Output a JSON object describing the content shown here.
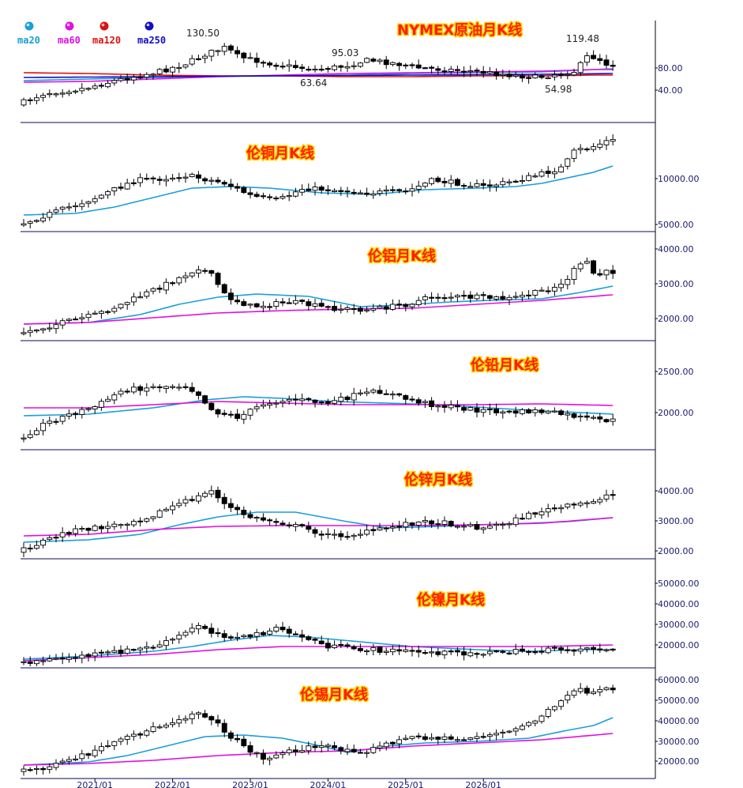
{
  "legend": [
    {
      "label": "ma20",
      "color": "#1a9ed8"
    },
    {
      "label": "ma60",
      "color": "#e010e0"
    },
    {
      "label": "ma120",
      "color": "#e01010"
    },
    {
      "label": "ma250",
      "color": "#1010c0"
    }
  ],
  "x_axis_dates": [
    "2021/01",
    "2022/01",
    "2023/01",
    "2024/01",
    "2025/01",
    "2026/01"
  ],
  "chart_data": [
    {
      "type": "candlestick",
      "title": "NYMEX原油月K线",
      "y_ticks": [
        "80.00",
        "40.00"
      ],
      "annotations": [
        "130.50",
        "95.03",
        "63.64",
        "119.48",
        "54.98"
      ],
      "ma_series": [
        "ma20",
        "ma60",
        "ma120",
        "ma250"
      ],
      "series_colors": {
        "ma20": "#1a9ed8",
        "ma60": "#e010e0",
        "ma120": "#e01010",
        "ma250": "#1010c0"
      }
    },
    {
      "type": "candlestick",
      "title": "伦铜月K线",
      "y_ticks": [
        "10000.00",
        "5000.00"
      ],
      "ma_series": [
        "ma20"
      ],
      "series_colors": {
        "ma20": "#1a9ed8"
      }
    },
    {
      "type": "candlestick",
      "title": "伦铝月K线",
      "y_ticks": [
        "4000.00",
        "3000.00",
        "2000.00"
      ],
      "ma_series": [
        "ma20",
        "ma60"
      ],
      "series_colors": {
        "ma20": "#1a9ed8",
        "ma60": "#e010e0"
      }
    },
    {
      "type": "candlestick",
      "title": "伦铅月K线",
      "y_ticks": [
        "2500.00",
        "2000.00"
      ],
      "ma_series": [
        "ma20",
        "ma60"
      ],
      "series_colors": {
        "ma20": "#1a9ed8",
        "ma60": "#e010e0"
      }
    },
    {
      "type": "candlestick",
      "title": "伦锌月K线",
      "y_ticks": [
        "4000.00",
        "3000.00",
        "2000.00"
      ],
      "ma_series": [
        "ma20",
        "ma60"
      ],
      "series_colors": {
        "ma20": "#1a9ed8",
        "ma60": "#e010e0"
      }
    },
    {
      "type": "candlestick",
      "title": "伦镍月K线",
      "y_ticks": [
        "50000.00",
        "40000.00",
        "30000.00",
        "20000.00"
      ],
      "ma_series": [
        "ma20",
        "ma60"
      ],
      "series_colors": {
        "ma20": "#1a9ed8",
        "ma60": "#e010e0"
      }
    },
    {
      "type": "candlestick",
      "title": "伦锡月K线",
      "y_ticks": [
        "60000.00",
        "50000.00",
        "40000.00",
        "30000.00",
        "20000.00"
      ],
      "ma_series": [
        "ma20",
        "ma60"
      ],
      "series_colors": {
        "ma20": "#1a9ed8",
        "ma60": "#e010e0"
      }
    }
  ]
}
